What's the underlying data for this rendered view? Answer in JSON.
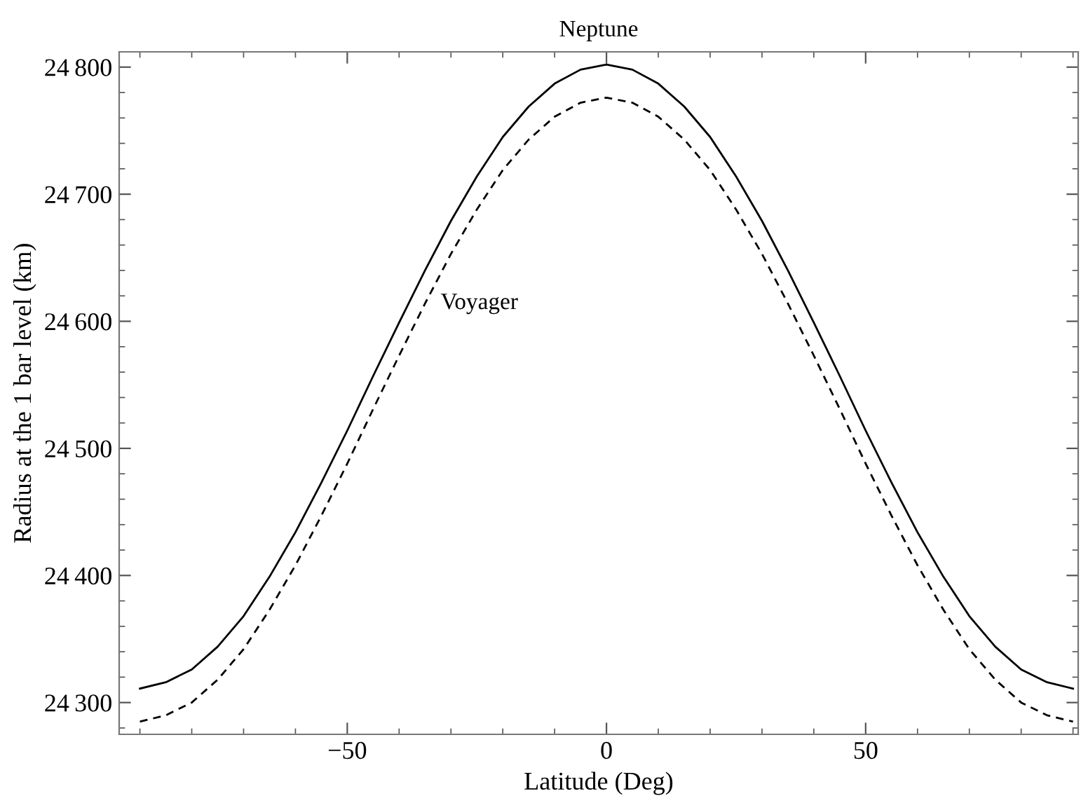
{
  "chart_data": {
    "type": "line",
    "title": "Neptune",
    "xlabel": "Latitude (Deg)",
    "ylabel": "Radius at the 1 bar level (km)",
    "x": [
      -90,
      -85,
      -80,
      -75,
      -70,
      -65,
      -60,
      -55,
      -50,
      -45,
      -40,
      -35,
      -30,
      -25,
      -20,
      -15,
      -10,
      -5,
      0,
      5,
      10,
      15,
      20,
      25,
      30,
      35,
      40,
      45,
      50,
      55,
      60,
      65,
      70,
      75,
      80,
      85,
      90
    ],
    "series": [
      {
        "color": "#000000",
        "line_style": "solid",
        "values": [
          24311,
          24316,
          24326,
          24344,
          24368,
          24399,
          24434,
          24473,
          24514,
          24557,
          24599,
          24640,
          24679,
          24714,
          24745,
          24769,
          24787,
          24798,
          24802,
          24798,
          24787,
          24769,
          24745,
          24714,
          24679,
          24640,
          24599,
          24557,
          24514,
          24473,
          24434,
          24399,
          24368,
          24344,
          24326,
          24316,
          24311
        ]
      },
      {
        "name": "Voyager",
        "color": "#000000",
        "line_style": "dashed",
        "values": [
          24285,
          24290,
          24300,
          24318,
          24342,
          24373,
          24408,
          24447,
          24488,
          24531,
          24573,
          24614,
          24653,
          24688,
          24719,
          24743,
          24761,
          24772,
          24776,
          24772,
          24761,
          24743,
          24719,
          24688,
          24653,
          24614,
          24573,
          24531,
          24488,
          24447,
          24408,
          24373,
          24342,
          24318,
          24300,
          24290,
          24285
        ]
      }
    ],
    "xlim": [
      -94,
      91
    ],
    "ylim": [
      24275,
      24812
    ],
    "xticks": [
      {
        "value": -50,
        "label": "−50"
      },
      0,
      50
    ],
    "yticks": [
      {
        "value": 24300,
        "label": "24 300"
      },
      {
        "value": 24400,
        "label": "24 400"
      },
      {
        "value": 24500,
        "label": "24 500"
      },
      {
        "value": 24600,
        "label": "24 600"
      },
      {
        "value": 24700,
        "label": "24 700"
      },
      {
        "value": 24800,
        "label": "24 800"
      }
    ],
    "grid": false,
    "legend": false
  }
}
